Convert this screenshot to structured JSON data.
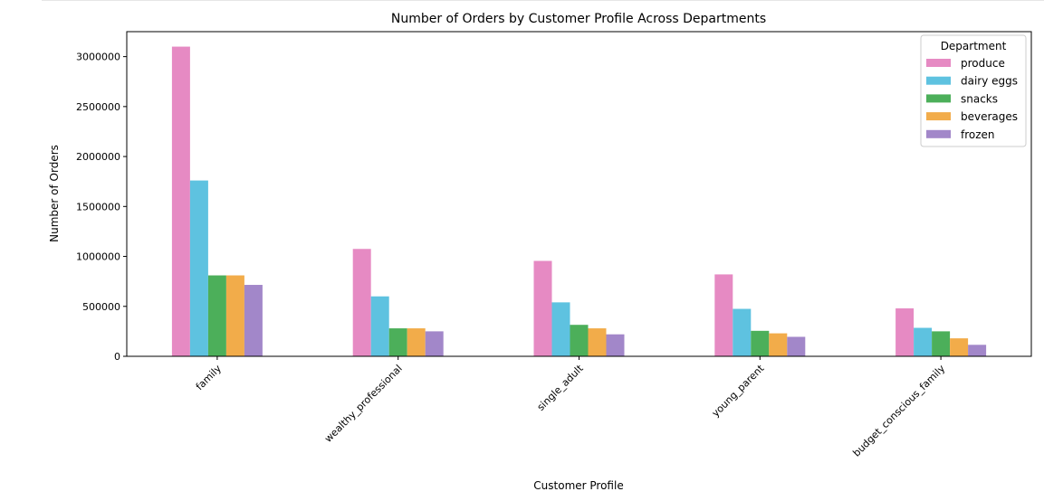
{
  "chart_data": {
    "type": "bar",
    "title": "Number of Orders by Customer Profile Across Departments",
    "xlabel": "Customer Profile",
    "ylabel": "Number of Orders",
    "ylim": [
      0,
      3250000
    ],
    "yticks": [
      0,
      500000,
      1000000,
      1500000,
      2000000,
      2500000,
      3000000
    ],
    "ytick_labels": [
      "0",
      "500000",
      "1000000",
      "1500000",
      "2000000",
      "2500000",
      "3000000"
    ],
    "grid": false,
    "legend": {
      "title": "Department",
      "placement": "top-right"
    },
    "categories": [
      "family",
      "wealthy_professional",
      "single_adult",
      "young_parent",
      "budget_conscious_family"
    ],
    "series": [
      {
        "name": "produce",
        "color": "#e68ac3",
        "values": [
          3100000,
          1075000,
          955000,
          820000,
          480000
        ]
      },
      {
        "name": "dairy eggs",
        "color": "#5ec2e0",
        "values": [
          1760000,
          600000,
          540000,
          475000,
          285000
        ]
      },
      {
        "name": "snacks",
        "color": "#4caf5a",
        "values": [
          810000,
          280000,
          315000,
          255000,
          250000
        ]
      },
      {
        "name": "beverages",
        "color": "#f2ac4a",
        "values": [
          810000,
          280000,
          280000,
          230000,
          180000
        ]
      },
      {
        "name": "frozen",
        "color": "#a287c9",
        "values": [
          715000,
          250000,
          220000,
          195000,
          115000
        ]
      }
    ]
  }
}
